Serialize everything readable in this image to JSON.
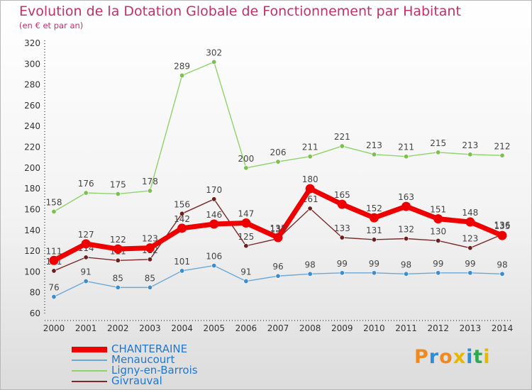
{
  "header": {
    "title": "Evolution de la Dotation Globale de Fonctionnement par Habitant",
    "subtitle": "(en € et par an)"
  },
  "logo": {
    "text": "Proxiti",
    "colors": [
      "#f08a1c",
      "#2a8ed8",
      "#f08a1c",
      "#e6b800",
      "#2a8ed8",
      "#33a852",
      "#e6b800"
    ]
  },
  "chart_data": {
    "type": "line",
    "title": "Evolution de la Dotation Globale de Fonctionnement par Habitant",
    "subtitle": "(en € et par an)",
    "xlabel": "",
    "ylabel": "",
    "x": [
      "2000",
      "2001",
      "2002",
      "2003",
      "2004",
      "2005",
      "2006",
      "2007",
      "2008",
      "2009",
      "2010",
      "2011",
      "2012",
      "2013",
      "2014"
    ],
    "ylim": [
      60,
      320
    ],
    "yticks": [
      60,
      80,
      100,
      120,
      140,
      160,
      180,
      200,
      220,
      240,
      260,
      280,
      300,
      320
    ],
    "grid": false,
    "legend_position": "bottom-left",
    "series": [
      {
        "name": "Ligny-en-Barrois",
        "color": "#8fd36a",
        "point_color": "#7cc04e",
        "values": [
          158,
          176,
          175,
          178,
          289,
          302,
          200,
          206,
          211,
          221,
          213,
          211,
          215,
          213,
          212
        ],
        "labels": [
          "158",
          "176",
          "175",
          "178",
          "289",
          "302",
          "200",
          "206",
          "211",
          "221",
          "213",
          "211",
          "215",
          "213",
          "212"
        ]
      },
      {
        "name": "Menaucourt",
        "color": "#6aa8d8",
        "point_color": "#3f8ccc",
        "values": [
          76,
          91,
          85,
          85,
          101,
          106,
          91,
          96,
          98,
          99,
          99,
          98,
          99,
          99,
          98
        ],
        "labels": [
          "76",
          "91",
          "85",
          "85",
          "101",
          "106",
          "91",
          "96",
          "98",
          "99",
          "99",
          "98",
          "99",
          "99",
          "98"
        ]
      },
      {
        "name": "Givrauval",
        "color": "#7a2a2a",
        "point_color": "#6b1f1f",
        "values": [
          101,
          114,
          111,
          112,
          156,
          170,
          125,
          132,
          161,
          133,
          131,
          132,
          130,
          123,
          136
        ],
        "labels": [
          "101",
          "114",
          "111",
          "112",
          "156",
          "170",
          "125",
          "132",
          "161",
          "133",
          "131",
          "132",
          "130",
          "123",
          "136"
        ]
      },
      {
        "name": "CHANTERAINE",
        "color": "#ee0000",
        "point_color": "#ee0000",
        "values": [
          111,
          127,
          122,
          123,
          142,
          146,
          147,
          133,
          180,
          165,
          152,
          163,
          151,
          148,
          135
        ],
        "labels": [
          "111",
          "127",
          "122",
          "123",
          "142",
          "146",
          "147",
          "133",
          "180",
          "165",
          "152",
          "163",
          "151",
          "148",
          "135"
        ]
      }
    ],
    "legend": [
      "CHANTERAINE",
      "Menaucourt",
      "Ligny-en-Barrois",
      "Givrauval"
    ]
  }
}
